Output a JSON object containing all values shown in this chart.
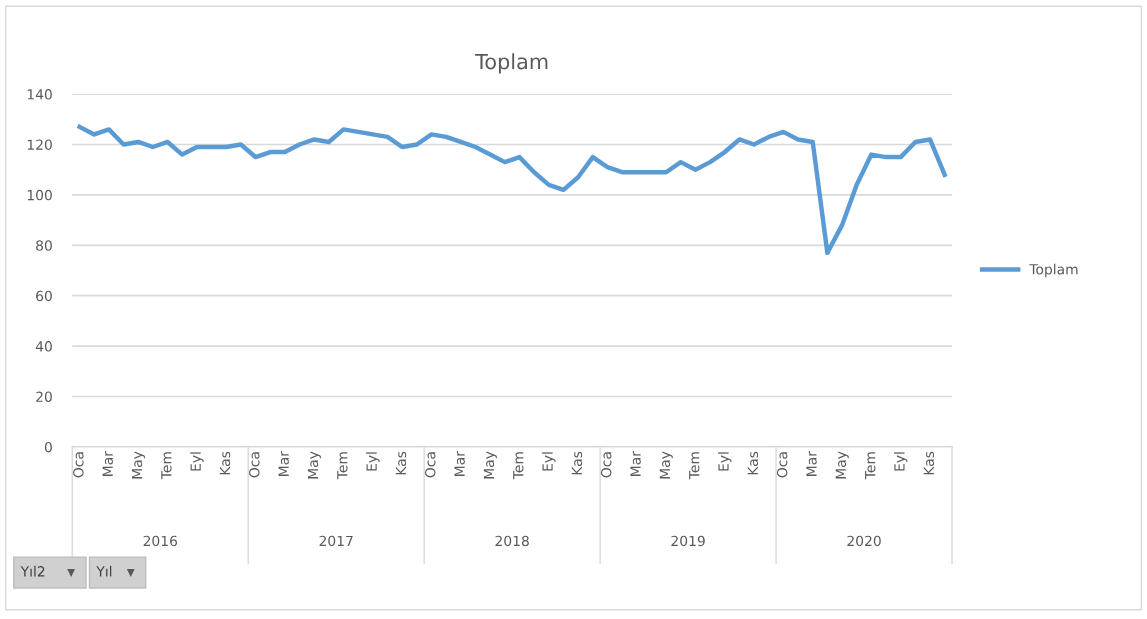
{
  "chart_data": {
    "type": "line",
    "title": "Toplam",
    "categories": [
      "Oca",
      null,
      "Mar",
      null,
      "May",
      null,
      "Tem",
      null,
      "Eyl",
      null,
      "Kas",
      null,
      "Oca",
      null,
      "Mar",
      null,
      "May",
      null,
      "Tem",
      null,
      "Eyl",
      null,
      "Kas",
      null,
      "Oca",
      null,
      "Mar",
      null,
      "May",
      null,
      "Tem",
      null,
      "Eyl",
      null,
      "Kas",
      null,
      "Oca",
      null,
      "Mar",
      null,
      "May",
      null,
      "Tem",
      null,
      "Eyl",
      null,
      "Kas",
      null,
      "Oca",
      null,
      "Mar",
      null,
      "May",
      null,
      "Tem",
      null,
      "Eyl",
      null,
      "Kas",
      null
    ],
    "series": [
      {
        "name": "Toplam",
        "color": "#5b9bd5",
        "values": [
          127,
          124,
          126,
          120,
          121,
          119,
          121,
          116,
          119,
          119,
          119,
          120,
          115,
          117,
          117,
          120,
          122,
          121,
          126,
          125,
          124,
          123,
          119,
          120,
          124,
          123,
          121,
          119,
          116,
          113,
          115,
          109,
          104,
          102,
          107,
          115,
          111,
          109,
          109,
          109,
          109,
          113,
          110,
          113,
          117,
          122,
          120,
          123,
          125,
          122,
          121,
          77,
          88,
          104,
          116,
          115,
          115,
          121,
          122,
          108
        ]
      }
    ],
    "ylim": [
      0,
      140
    ],
    "yticks": [
      0,
      20,
      40,
      60,
      80,
      100,
      120,
      140
    ],
    "grid": "y",
    "legend": "right",
    "line_style": "solid",
    "marker": "none",
    "annotations": [
      "2016",
      "2017",
      "2018",
      "2019",
      "2020",
      "Yıl2",
      "Yıl"
    ]
  }
}
